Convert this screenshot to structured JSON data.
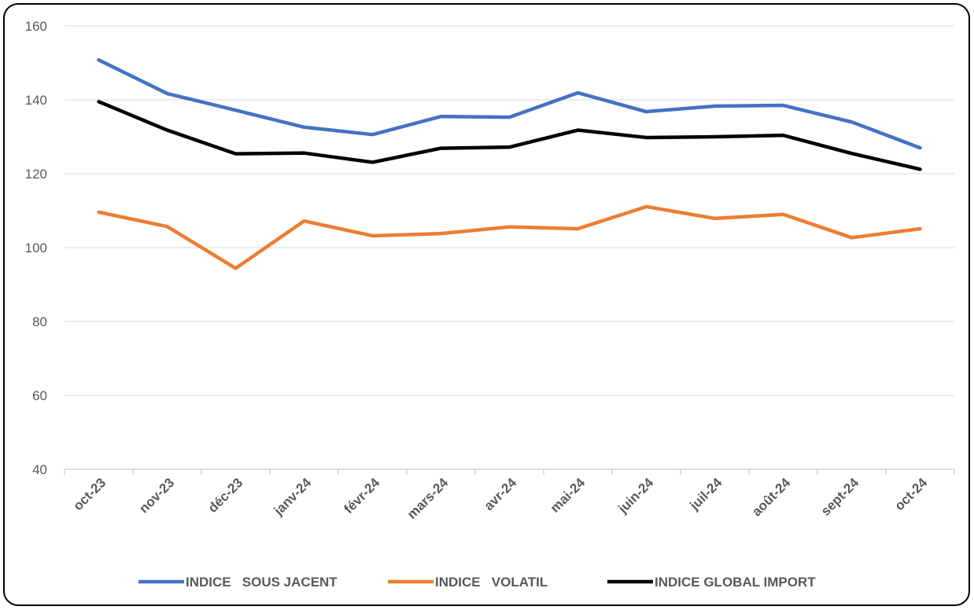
{
  "chart_data": {
    "type": "line",
    "categories": [
      "oct-23",
      "nov-23",
      "déc-23",
      "janv-24",
      "févr-24",
      "mars-24",
      "avr-24",
      "mai-24",
      "juin-24",
      "juil-24",
      "août-24",
      "sept-24",
      "oct-24"
    ],
    "series": [
      {
        "name": "INDICE   SOUS JACENT",
        "color": "#4472c4",
        "values": [
          150.8,
          141.7,
          137.2,
          132.6,
          130.6,
          135.5,
          135.3,
          141.9,
          136.8,
          138.3,
          138.5,
          134.0,
          127.0
        ]
      },
      {
        "name": "INDICE   VOLATIL",
        "color": "#ed7d31",
        "values": [
          109.6,
          105.7,
          94.4,
          107.2,
          103.2,
          103.8,
          105.6,
          105.1,
          111.1,
          107.9,
          109.0,
          102.7,
          105.1
        ]
      },
      {
        "name": "INDICE GLOBAL IMPORT",
        "color": "#000000",
        "values": [
          139.5,
          131.8,
          125.4,
          125.6,
          123.1,
          126.9,
          127.2,
          131.8,
          129.8,
          130.0,
          130.4,
          125.5,
          121.2
        ]
      }
    ],
    "ylim": [
      40,
      160
    ],
    "yticks": [
      40,
      60,
      80,
      100,
      120,
      140,
      160
    ],
    "grid": true,
    "legend": "bottom"
  }
}
